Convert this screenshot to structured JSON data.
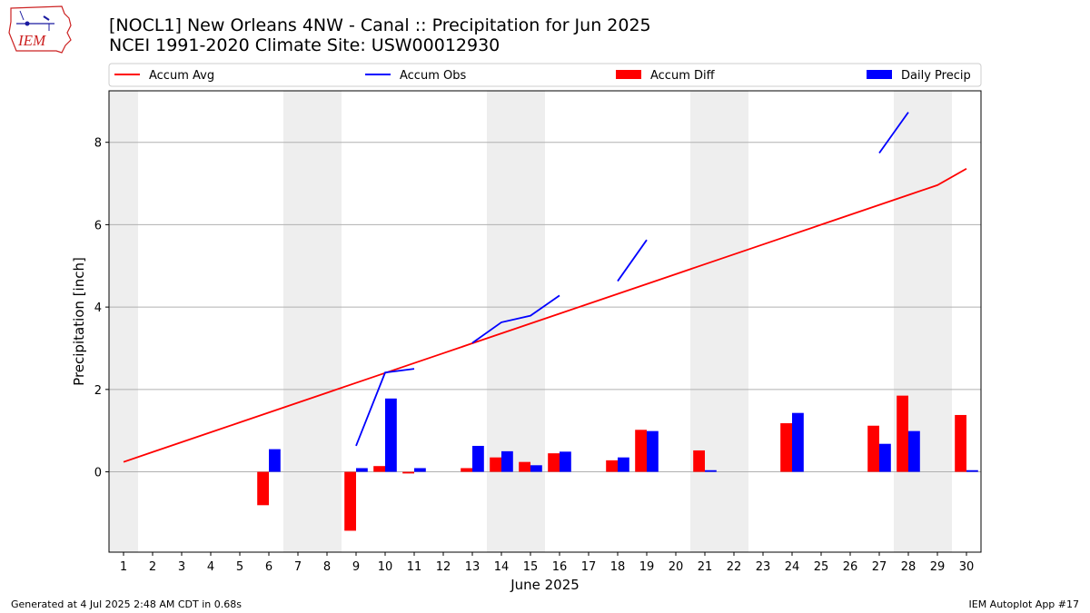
{
  "header": {
    "title": "[NOCL1] New Orleans 4NW - Canal :: Precipitation for Jun 2025",
    "subtitle": "NCEI 1991-2020 Climate Site: USW00012930",
    "logo_text": "IEM"
  },
  "footer": {
    "generated": "Generated at 4 Jul 2025 2:48 AM CDT in 0.68s",
    "app": "IEM Autoplot App #17"
  },
  "colors": {
    "accum_avg": "#ff0000",
    "accum_obs": "#0000ff",
    "accum_diff": "#ff0000",
    "daily_precip": "#0000ff",
    "weekend_shade": "#eeeeee",
    "grid": "#b0b0b0"
  },
  "chart_data": {
    "type": "bar",
    "xlabel": "June 2025",
    "ylabel": "Precipitation [inch]",
    "xlim": [
      0.5,
      30.5
    ],
    "ylim": [
      -1.95,
      9.25
    ],
    "yticks": [
      0,
      2,
      4,
      6,
      8
    ],
    "grid": "y",
    "legend_position": "top",
    "days": [
      1,
      2,
      3,
      4,
      5,
      6,
      7,
      8,
      9,
      10,
      11,
      12,
      13,
      14,
      15,
      16,
      17,
      18,
      19,
      20,
      21,
      22,
      23,
      24,
      25,
      26,
      27,
      28,
      29,
      30
    ],
    "shaded_days": [
      1,
      7,
      8,
      14,
      15,
      21,
      22,
      28,
      29
    ],
    "series": [
      {
        "name": "Accum Avg",
        "kind": "line",
        "values": [
          0.24,
          0.48,
          0.72,
          0.96,
          1.2,
          1.44,
          1.68,
          1.92,
          2.16,
          2.4,
          2.64,
          2.88,
          3.12,
          3.36,
          3.6,
          3.84,
          4.08,
          4.32,
          4.56,
          4.8,
          5.04,
          5.28,
          5.52,
          5.76,
          6.0,
          6.24,
          6.48,
          6.72,
          6.96,
          7.36
        ]
      },
      {
        "name": "Accum Obs",
        "kind": "line",
        "segments": [
          {
            "x": [
              9,
              10,
              11
            ],
            "y": [
              0.63,
              2.41,
              2.5
            ]
          },
          {
            "x": [
              13,
              14,
              15,
              16
            ],
            "y": [
              3.13,
              3.63,
              3.79,
              4.28
            ]
          },
          {
            "x": [
              18,
              19
            ],
            "y": [
              4.63,
              5.63
            ]
          },
          {
            "x": [
              27,
              28
            ],
            "y": [
              7.74,
              8.73
            ]
          }
        ]
      },
      {
        "name": "Accum Diff",
        "kind": "bar",
        "x": [
          6,
          9,
          10,
          11,
          13,
          14,
          15,
          16,
          18,
          19,
          21,
          24,
          27,
          28,
          30
        ],
        "values": [
          -0.81,
          -1.43,
          0.14,
          -0.04,
          0.09,
          0.35,
          0.24,
          0.45,
          0.28,
          1.02,
          0.52,
          1.18,
          1.12,
          1.85,
          1.38
        ]
      },
      {
        "name": "Daily Precip",
        "kind": "bar",
        "x": [
          6,
          9,
          10,
          11,
          13,
          14,
          15,
          16,
          18,
          19,
          21,
          24,
          27,
          28,
          30
        ],
        "values": [
          0.55,
          0.09,
          1.78,
          0.09,
          0.63,
          0.5,
          0.16,
          0.49,
          0.35,
          0.99,
          0.04,
          1.43,
          0.68,
          0.99,
          0.04
        ]
      }
    ]
  }
}
